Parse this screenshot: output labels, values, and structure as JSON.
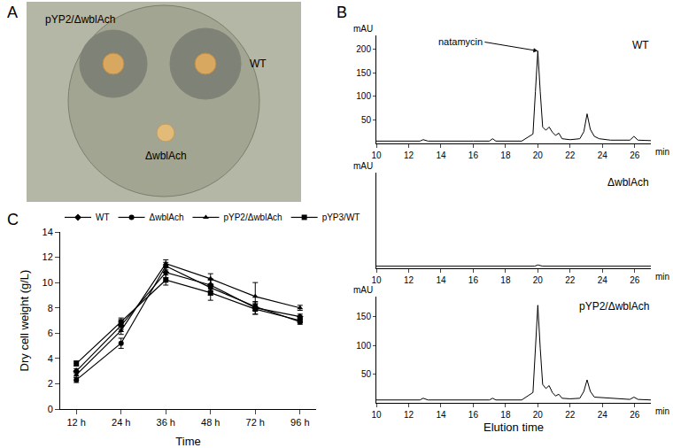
{
  "photo": {
    "panel_label": "A",
    "colonies": [
      "pYP2/ΔwblAch",
      "WT",
      "ΔwblAch"
    ]
  },
  "chart_data": [
    {
      "panel_label": "B",
      "type": "line",
      "y_title": "mAU",
      "x_unit": "min",
      "x": [
        10,
        12,
        12.7,
        12.9,
        13.2,
        16,
        17,
        17.2,
        17.4,
        19,
        19.7,
        19.85,
        20,
        20.15,
        20.3,
        20.5,
        20.7,
        20.9,
        21.1,
        21.3,
        21.5,
        22,
        22.6,
        22.85,
        23.05,
        23.25,
        23.5,
        23.8,
        24.5,
        25.7,
        25.95,
        26.2,
        27
      ],
      "series": [
        {
          "name": "WT",
          "color": "#000000",
          "values": [
            5,
            5,
            5,
            8,
            5,
            5,
            5,
            10,
            5,
            5,
            20,
            110,
            197,
            110,
            35,
            28,
            35,
            24,
            17,
            22,
            10,
            8,
            10,
            25,
            63,
            30,
            15,
            10,
            7,
            7,
            15,
            7,
            6
          ]
        }
      ],
      "xlim": [
        10,
        27
      ],
      "xticks": [
        10,
        12,
        14,
        16,
        18,
        20,
        22,
        24,
        26
      ],
      "ylim": [
        0,
        230
      ],
      "yticks": [
        50,
        100,
        150,
        200
      ],
      "grid": false,
      "annotations": [
        {
          "text": "natamycin",
          "x": 20,
          "y": 197
        }
      ]
    },
    {
      "type": "line",
      "y_title": "mAU",
      "x_unit": "min",
      "x": [
        10,
        15,
        19.8,
        20,
        20.3,
        27
      ],
      "series": [
        {
          "name": "ΔwblAch",
          "color": "#000000",
          "values": [
            5,
            5,
            5,
            8,
            5,
            5
          ]
        }
      ],
      "xlim": [
        10,
        27
      ],
      "xticks": [
        10,
        12,
        14,
        16,
        18,
        20,
        22,
        24,
        26
      ],
      "ylim": [
        0,
        230
      ],
      "yticks": [],
      "tick_labels": "x",
      "grid": false
    },
    {
      "type": "line",
      "y_title": "mAU",
      "x_unit": "min",
      "x_title": "Elution time",
      "x": [
        10,
        12.7,
        12.9,
        13.2,
        17,
        17.2,
        17.4,
        19,
        19.7,
        19.85,
        20,
        20.15,
        20.3,
        20.5,
        20.7,
        20.9,
        21.1,
        21.3,
        21.5,
        22,
        22.6,
        22.85,
        23.05,
        23.25,
        23.5,
        25.7,
        25.95,
        26.2,
        27
      ],
      "series": [
        {
          "name": "pYP2/ΔwblAch",
          "color": "#000000",
          "values": [
            5,
            5,
            8,
            5,
            5,
            8,
            5,
            5,
            18,
            95,
            170,
            95,
            32,
            25,
            30,
            18,
            12,
            15,
            8,
            7,
            8,
            20,
            40,
            20,
            10,
            6,
            10,
            6,
            5
          ]
        }
      ],
      "xlim": [
        10,
        27
      ],
      "xticks": [
        10,
        12,
        14,
        16,
        18,
        20,
        22,
        24,
        26
      ],
      "ylim": [
        0,
        185
      ],
      "yticks": [
        50,
        100,
        150
      ],
      "grid": false
    },
    {
      "panel_label": "C",
      "type": "line",
      "x_title": "Time",
      "y_title": "Dry cell weight (g/L)",
      "categories": [
        "12 h",
        "24 h",
        "36 h",
        "48 h",
        "72 h",
        "96 h"
      ],
      "series": [
        {
          "name": "WT",
          "color": "#000000",
          "marker": "diamond",
          "values": [
            3.0,
            6.6,
            10.8,
            9.8,
            8.0,
            7.3
          ],
          "errors": [
            0.2,
            0.3,
            0.4,
            0.5,
            0.5,
            0.2
          ]
        },
        {
          "name": "ΔwblAch",
          "color": "#000000",
          "marker": "circle",
          "values": [
            2.3,
            5.2,
            11.3,
            9.6,
            8.1,
            6.9
          ],
          "errors": [
            0.2,
            0.4,
            0.3,
            0.6,
            0.3,
            0.2
          ]
        },
        {
          "name": "pYP2/ΔwblAch",
          "color": "#000000",
          "marker": "triangle-up",
          "values": [
            2.7,
            6.2,
            11.5,
            10.3,
            8.9,
            8.0
          ],
          "errors": [
            0.2,
            0.3,
            0.3,
            0.4,
            1.1,
            0.2
          ]
        },
        {
          "name": "pYP3/WT",
          "color": "#000000",
          "marker": "square",
          "values": [
            3.6,
            6.9,
            10.2,
            9.2,
            7.9,
            7.0
          ],
          "errors": [
            0.2,
            0.3,
            0.4,
            0.6,
            0.4,
            0.2
          ]
        }
      ],
      "ylim": [
        0,
        14
      ],
      "yticks": [
        0,
        2,
        4,
        6,
        8,
        10,
        12,
        14
      ],
      "legend": "top",
      "grid": false
    }
  ]
}
